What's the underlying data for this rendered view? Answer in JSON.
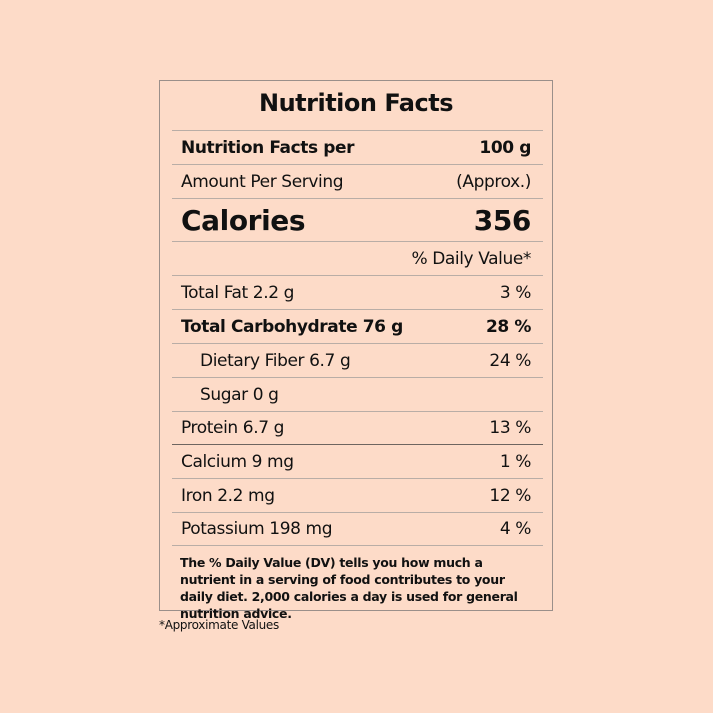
{
  "label": {
    "title": "Nutrition Facts",
    "rows": [
      {
        "label": "Nutrition Facts per",
        "value": "100 g"
      },
      {
        "label": "Amount Per Serving",
        "value": "(Approx.)"
      },
      {
        "label": "Calories",
        "value": "356"
      },
      {
        "value": "% Daily Value*"
      },
      {
        "label": "Total Fat 2.2 g",
        "value": "3 %"
      },
      {
        "label": "Total Carbohydrate 76 g",
        "value": "28 %"
      },
      {
        "label": "Dietary Fiber 6.7 g",
        "value": "24 %"
      },
      {
        "label": "Sugar 0 g"
      },
      {
        "label": "Protein 6.7 g",
        "value": "13 %"
      },
      {
        "label": "Calcium 9 mg",
        "value": "1 %"
      },
      {
        "label": "Iron 2.2 mg",
        "value": "12 %"
      },
      {
        "label": "Potassium 198 mg",
        "value": "4 %"
      }
    ],
    "footnote": "The % Daily Value (DV) tells you how much a nutrient in a serving of food contributes to your daily diet. 2,000 calories a day is used for general nutrition advice."
  },
  "note": "*Approximate Values"
}
